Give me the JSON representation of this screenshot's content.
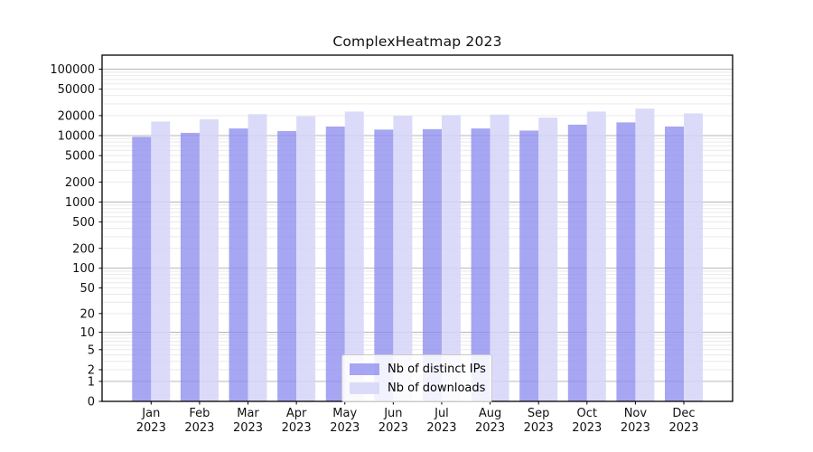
{
  "chart_data": {
    "type": "bar",
    "title": "ComplexHeatmap 2023",
    "year_label": "2023",
    "categories": [
      "Jan",
      "Feb",
      "Mar",
      "Apr",
      "May",
      "Jun",
      "Jul",
      "Aug",
      "Sep",
      "Oct",
      "Nov",
      "Dec"
    ],
    "series": [
      {
        "name": "Nb of distinct IPs",
        "color": "#8d8df0",
        "fill_opacity": 0.78,
        "values": [
          9600,
          11000,
          12800,
          11700,
          13700,
          12300,
          12500,
          12800,
          11900,
          14600,
          15800,
          13700
        ]
      },
      {
        "name": "Nb of downloads",
        "color": "#d5d5f8",
        "fill_opacity": 0.85,
        "values": [
          16300,
          17600,
          21000,
          19500,
          23000,
          19900,
          20300,
          20700,
          18700,
          23000,
          25500,
          21600
        ]
      }
    ],
    "xlabel": "",
    "ylabel": "",
    "yscale": "log1p",
    "yticks": [
      0,
      1,
      2,
      5,
      10,
      20,
      50,
      100,
      200,
      500,
      1000,
      2000,
      5000,
      10000,
      20000,
      50000,
      100000
    ],
    "ylim": [
      0,
      163000
    ],
    "grid": {
      "show": true,
      "major_color": "#b6b6b6",
      "minor_color": "#e9e9e9"
    },
    "legend": {
      "position": "lower center"
    },
    "axis_color": "#000000",
    "tick_label_color": "#111111"
  }
}
